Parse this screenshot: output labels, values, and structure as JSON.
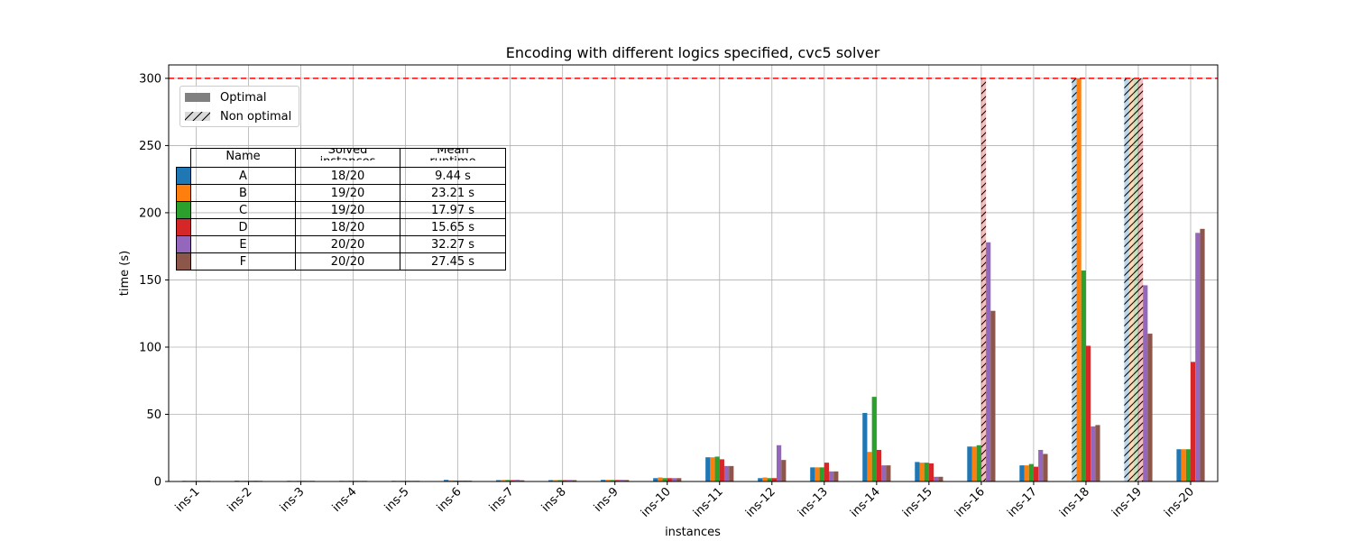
{
  "chart_data": {
    "type": "bar",
    "title": "Encoding with different logics specified, cvc5 solver",
    "xlabel": "instances",
    "ylabel": "time (s)",
    "ylim": [
      0,
      310
    ],
    "yticks": [
      0,
      50,
      100,
      150,
      200,
      250,
      300
    ],
    "timeout_line": 300,
    "timeout_line_color": "#ff0000",
    "grid": true,
    "categories": [
      "ins-1",
      "ins-2",
      "ins-3",
      "ins-4",
      "ins-5",
      "ins-6",
      "ins-7",
      "ins-8",
      "ins-9",
      "ins-10",
      "ins-11",
      "ins-12",
      "ins-13",
      "ins-14",
      "ins-15",
      "ins-16",
      "ins-17",
      "ins-18",
      "ins-19",
      "ins-20"
    ],
    "series": [
      {
        "name": "A",
        "color": "#1f77b4",
        "values": [
          0.5,
          0.6,
          0.5,
          0.5,
          0.5,
          1.2,
          1.0,
          1.0,
          1.2,
          2.5,
          18,
          2.5,
          10.5,
          51,
          14.5,
          26,
          12,
          300,
          300,
          24
        ],
        "non_optimal": [
          false,
          false,
          false,
          false,
          false,
          false,
          false,
          false,
          false,
          false,
          false,
          false,
          false,
          false,
          false,
          false,
          false,
          true,
          true,
          false
        ]
      },
      {
        "name": "B",
        "color": "#ff7f0e",
        "values": [
          0.5,
          0.5,
          0.5,
          0.5,
          0.5,
          0.8,
          1.1,
          1.0,
          1.2,
          3.0,
          18,
          3.0,
          10.5,
          22,
          14,
          26,
          12,
          300,
          300,
          24
        ],
        "non_optimal": [
          false,
          false,
          false,
          false,
          false,
          false,
          false,
          false,
          false,
          false,
          false,
          false,
          false,
          false,
          false,
          false,
          false,
          false,
          true,
          false
        ]
      },
      {
        "name": "C",
        "color": "#2ca02c",
        "values": [
          0.5,
          0.5,
          0.5,
          0.5,
          0.5,
          0.7,
          1.1,
          1.0,
          1.1,
          2.5,
          18.5,
          2.5,
          10.5,
          63,
          14,
          27,
          13,
          157,
          300,
          24
        ],
        "non_optimal": [
          false,
          false,
          false,
          false,
          false,
          false,
          false,
          false,
          false,
          false,
          false,
          false,
          false,
          false,
          false,
          false,
          false,
          false,
          true,
          false
        ]
      },
      {
        "name": "D",
        "color": "#d62728",
        "values": [
          0.5,
          0.5,
          0.5,
          0.5,
          0.5,
          0.6,
          1.0,
          1.0,
          1.1,
          2.5,
          16.5,
          2.5,
          14,
          23.5,
          13.5,
          300,
          11,
          101,
          300,
          89
        ],
        "non_optimal": [
          false,
          false,
          false,
          false,
          false,
          false,
          false,
          false,
          false,
          false,
          false,
          false,
          false,
          false,
          false,
          true,
          false,
          false,
          true,
          false
        ]
      },
      {
        "name": "E",
        "color": "#9467bd",
        "values": [
          0.5,
          0.6,
          0.5,
          0.5,
          0.5,
          0.7,
          1.2,
          1.1,
          1.2,
          2.5,
          11.5,
          27,
          7.5,
          12,
          3.5,
          178,
          23.5,
          41,
          146,
          185
        ],
        "non_optimal": [
          false,
          false,
          false,
          false,
          false,
          false,
          false,
          false,
          false,
          false,
          false,
          false,
          false,
          false,
          false,
          false,
          false,
          false,
          false,
          false
        ]
      },
      {
        "name": "F",
        "color": "#8c564b",
        "values": [
          0.5,
          0.5,
          0.5,
          0.5,
          0.5,
          0.6,
          0.9,
          1.0,
          1.1,
          2.5,
          11.5,
          16,
          7.5,
          12,
          3.5,
          127,
          20.5,
          42,
          110,
          188
        ],
        "non_optimal": [
          false,
          false,
          false,
          false,
          false,
          false,
          false,
          false,
          false,
          false,
          false,
          false,
          false,
          false,
          false,
          false,
          false,
          false,
          false,
          false
        ]
      }
    ]
  },
  "legend": {
    "optimal_label": "Optimal",
    "non_optimal_label": "Non optimal"
  },
  "summary_table": {
    "headers": {
      "name": "Name",
      "solved": "Solved\ninstances",
      "mean": "Mean\nruntime"
    },
    "rows": [
      {
        "color": "#1f77b4",
        "name": "A",
        "solved": "18/20",
        "mean": "9.44 s"
      },
      {
        "color": "#ff7f0e",
        "name": "B",
        "solved": "19/20",
        "mean": "23.21 s"
      },
      {
        "color": "#2ca02c",
        "name": "C",
        "solved": "19/20",
        "mean": "17.97 s"
      },
      {
        "color": "#d62728",
        "name": "D",
        "solved": "18/20",
        "mean": "15.65 s"
      },
      {
        "color": "#9467bd",
        "name": "E",
        "solved": "20/20",
        "mean": "32.27 s"
      },
      {
        "color": "#8c564b",
        "name": "F",
        "solved": "20/20",
        "mean": "27.45 s"
      }
    ]
  }
}
